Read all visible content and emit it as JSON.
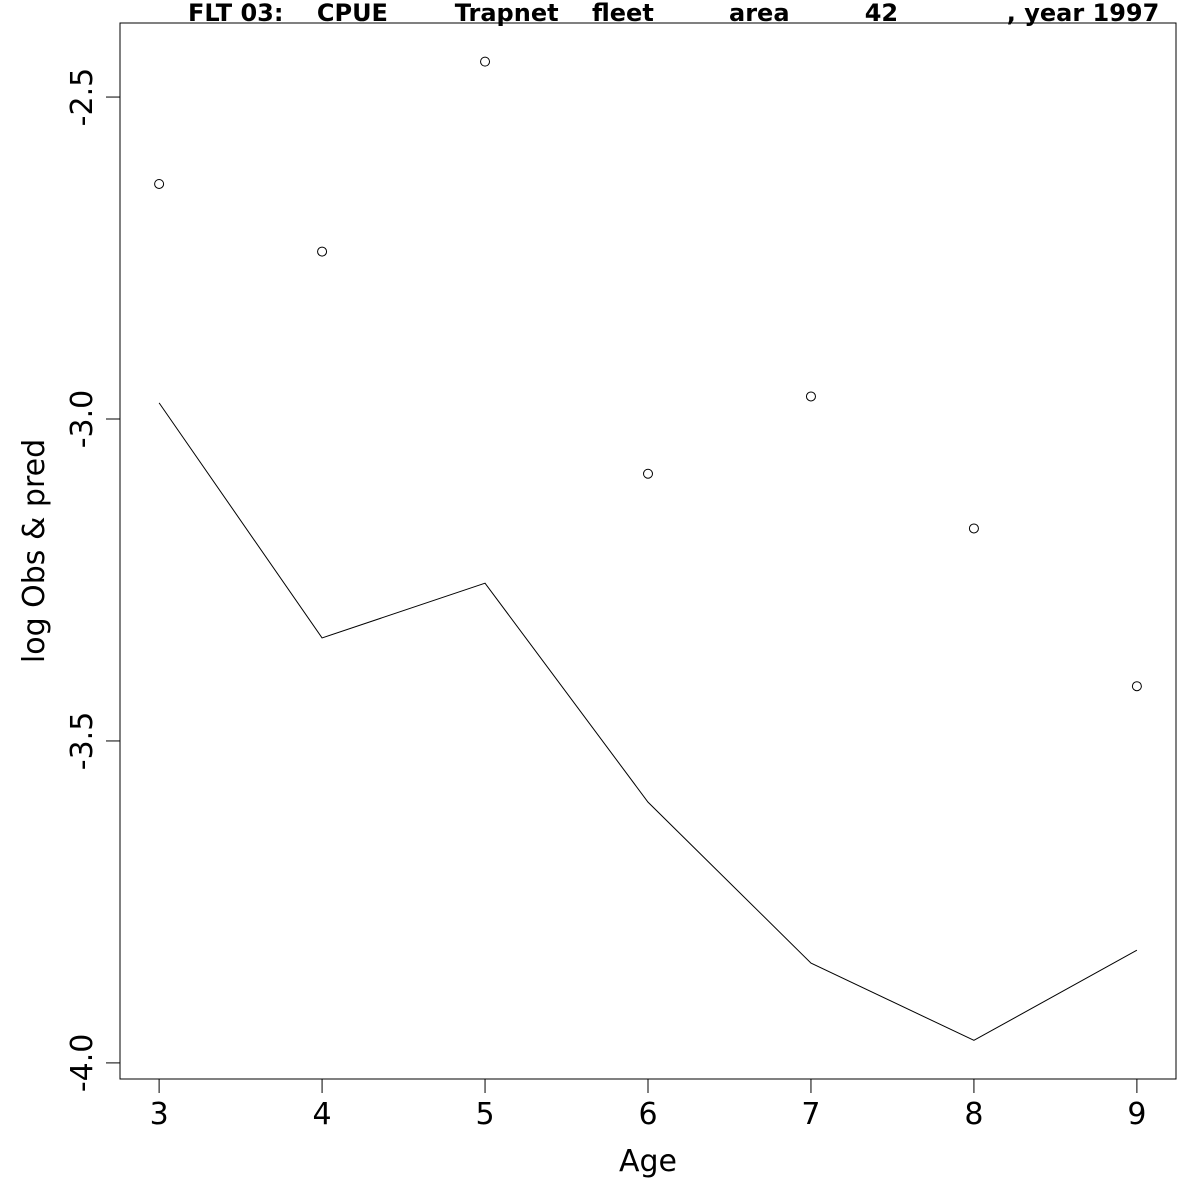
{
  "chart_data": {
    "type": "scatter",
    "title": "FLT 03:    CPUE        Trapnet    fleet         area         42             , year 1997",
    "xlabel": "Age",
    "ylabel": "log Obs & pred",
    "xlim": [
      2.76,
      9.24
    ],
    "ylim": [
      -4.025,
      -2.385
    ],
    "x_ticks": [
      3,
      4,
      5,
      6,
      7,
      8,
      9
    ],
    "x_tick_labels": [
      "3",
      "4",
      "5",
      "6",
      "7",
      "8",
      "9"
    ],
    "y_ticks": [
      -4.0,
      -3.5,
      -3.0,
      -2.5
    ],
    "y_tick_labels": [
      "-4.0",
      "-3.5",
      "-3.0",
      "-2.5"
    ],
    "grid": false,
    "series": [
      {
        "kind": "points",
        "marker": "open-circle",
        "x": [
          3,
          4,
          5,
          6,
          7,
          8,
          9
        ],
        "y": [
          -2.635,
          -2.74,
          -2.445,
          -3.085,
          -2.965,
          -3.17,
          -3.415
        ]
      },
      {
        "kind": "line",
        "x": [
          3,
          4,
          5,
          6,
          7,
          8,
          9
        ],
        "y": [
          -2.975,
          -3.34,
          -3.255,
          -3.595,
          -3.845,
          -3.965,
          -3.825
        ]
      }
    ],
    "colors": {
      "ink": "#000000",
      "background": "#ffffff"
    }
  }
}
